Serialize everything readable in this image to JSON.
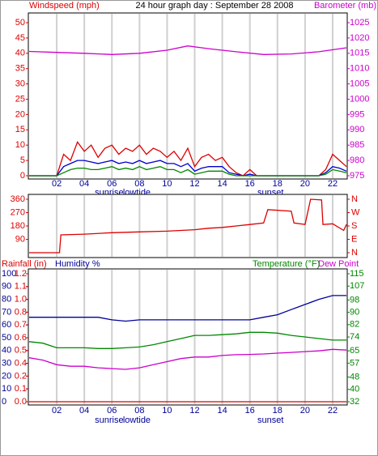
{
  "chart_data": [
    {
      "type": "line",
      "title": "24 hour graph day : September 28 2008",
      "axis_titles": [
        {
          "text": "Windspeed (mph)",
          "color": "#dd0000"
        },
        {
          "text": "Barometer (mb)",
          "color": "#cc00cc"
        }
      ],
      "xlim": [
        0,
        23
      ],
      "xticks": [
        {
          "value": 2,
          "label": "02"
        },
        {
          "value": 4,
          "label": "04"
        },
        {
          "value": 6,
          "label": "06"
        },
        {
          "value": 8,
          "label": "08"
        },
        {
          "value": 10,
          "label": "10"
        },
        {
          "value": 12,
          "label": "12"
        },
        {
          "value": 14,
          "label": "14"
        },
        {
          "value": 16,
          "label": "16"
        },
        {
          "value": 18,
          "label": "18"
        },
        {
          "value": 20,
          "label": "20"
        },
        {
          "value": 22,
          "label": "22"
        }
      ],
      "ylim": [
        0,
        50
      ],
      "yticks": [
        0,
        5,
        10,
        15,
        20,
        25,
        30,
        35,
        40,
        45,
        50
      ],
      "ycolor": "#dd0000",
      "y2lim": [
        975,
        1025
      ],
      "y2ticks": [
        975,
        980,
        985,
        990,
        995,
        1000,
        1005,
        1010,
        1015,
        1020,
        1025
      ],
      "y2color": "#cc00cc",
      "annotations": [
        {
          "text": "sunrise",
          "x": 5.8
        },
        {
          "text": "lowtide",
          "x": 7.8
        },
        {
          "text": "sunset",
          "x": 17.5
        }
      ],
      "x": [
        0,
        0.5,
        1,
        1.5,
        2,
        2.5,
        3,
        3.5,
        4,
        4.5,
        5,
        5.5,
        6,
        6.5,
        7,
        7.5,
        8,
        8.5,
        9,
        9.5,
        10,
        10.5,
        11,
        11.5,
        12,
        12.5,
        13,
        13.5,
        14,
        14.5,
        15,
        15.5,
        16,
        16.5,
        17,
        17.5,
        18,
        18.5,
        19,
        19.5,
        20,
        20.5,
        21,
        21.5,
        22,
        22.5,
        23
      ],
      "series": [
        {
          "color": "#dd0000",
          "values": [
            0,
            0,
            0,
            0,
            0,
            7,
            5,
            11,
            8,
            10,
            6,
            9,
            10,
            7,
            9,
            8,
            10,
            7,
            9,
            8,
            6,
            8,
            5,
            9,
            3,
            6,
            7,
            5,
            6,
            3,
            1,
            0,
            2,
            0,
            0,
            0,
            0,
            0,
            0,
            0,
            0,
            0,
            0,
            2,
            7,
            5,
            3
          ]
        },
        {
          "color": "#0000cc",
          "values": [
            0,
            0,
            0,
            0,
            0,
            3,
            4,
            5,
            5,
            4.5,
            4,
            4.5,
            5,
            4,
            4.5,
            4,
            5,
            4,
            4.5,
            5,
            4,
            4,
            3,
            4,
            1.5,
            2.5,
            3,
            3,
            3,
            1,
            0.5,
            0,
            0.5,
            0,
            0,
            0,
            0,
            0,
            0,
            0,
            0,
            0,
            0,
            1,
            3,
            2.5,
            1.5
          ]
        },
        {
          "color": "#008800",
          "values": [
            0,
            0,
            0,
            0,
            0,
            1,
            2,
            2.5,
            2.5,
            2,
            2,
            2.5,
            3,
            2,
            2.5,
            2,
            3,
            2,
            2.5,
            3,
            2,
            2,
            1,
            2,
            0.5,
            1,
            1.5,
            1.5,
            1.5,
            0.5,
            0,
            0,
            0,
            0,
            0,
            0,
            0,
            0,
            0,
            0,
            0,
            0,
            0,
            0.5,
            2,
            1.5,
            1
          ]
        },
        {
          "color": "#cc00cc",
          "axis": "y2",
          "x": [
            0,
            2,
            4,
            6,
            8,
            10,
            11.5,
            13,
            15,
            17,
            19,
            21,
            23
          ],
          "values": [
            1015.6,
            1015.3,
            1015,
            1014.6,
            1015,
            1016,
            1017.4,
            1016.5,
            1015.5,
            1014.6,
            1014.8,
            1015.5,
            1016.8
          ]
        }
      ]
    },
    {
      "type": "line",
      "xlim": [
        0,
        23
      ],
      "xticks": [
        2,
        4,
        6,
        8,
        10,
        12,
        14,
        16,
        18,
        20,
        22
      ],
      "ylim": [
        0,
        360
      ],
      "yticks": [
        90,
        180,
        270,
        360
      ],
      "ycolor": "#dd0000",
      "y2lim": [
        0,
        360
      ],
      "y2ticks": [
        {
          "value": 0,
          "label": "N"
        },
        {
          "value": 90,
          "label": "E"
        },
        {
          "value": 180,
          "label": "S"
        },
        {
          "value": 270,
          "label": "W"
        },
        {
          "value": 360,
          "label": "N"
        }
      ],
      "y2color": "#dd0000",
      "series": [
        {
          "color": "#dd0000",
          "x": [
            0,
            2.2,
            2.3,
            4,
            6,
            8,
            10,
            12,
            13,
            14,
            15,
            16,
            17,
            17.3,
            19,
            19.2,
            20,
            20.4,
            21.2,
            21.3,
            22,
            22.8,
            23
          ],
          "values": [
            0,
            0,
            120,
            125,
            135,
            140,
            145,
            155,
            165,
            170,
            180,
            190,
            200,
            290,
            280,
            200,
            190,
            360,
            355,
            190,
            195,
            150,
            190
          ]
        }
      ]
    },
    {
      "type": "line",
      "axis_titles": [
        {
          "text": "Rainfall (in)",
          "color": "#dd0000"
        },
        {
          "text": "Humidity %",
          "color": "#000099"
        },
        {
          "text": "Temperature (°F)",
          "color": "#008800"
        },
        {
          "text": "Dew Point",
          "color": "#cc00cc"
        }
      ],
      "xlim": [
        0,
        23
      ],
      "xticks": [
        {
          "value": 2,
          "label": "02"
        },
        {
          "value": 4,
          "label": "04"
        },
        {
          "value": 6,
          "label": "06"
        },
        {
          "value": 8,
          "label": "08"
        },
        {
          "value": 10,
          "label": "10"
        },
        {
          "value": 12,
          "label": "12"
        },
        {
          "value": 14,
          "label": "14"
        },
        {
          "value": 16,
          "label": "16"
        },
        {
          "value": 18,
          "label": "18"
        },
        {
          "value": 20,
          "label": "20"
        },
        {
          "value": 22,
          "label": "22"
        }
      ],
      "ylim": [
        0,
        100
      ],
      "yticks": [
        0,
        10,
        20,
        30,
        40,
        50,
        60,
        70,
        80,
        90,
        100
      ],
      "ycolor": "#000099",
      "y3lim": [
        0,
        1.2
      ],
      "y3ticks": [
        {
          "value": 0,
          "label": "0.0"
        },
        {
          "value": 0.12,
          "label": "0.1"
        },
        {
          "value": 0.24,
          "label": "0.2"
        },
        {
          "value": 0.36,
          "label": "0.4"
        },
        {
          "value": 0.48,
          "label": "0.5"
        },
        {
          "value": 0.6,
          "label": "0.6"
        },
        {
          "value": 0.72,
          "label": "0.7"
        },
        {
          "value": 0.84,
          "label": "0.8"
        },
        {
          "value": 0.96,
          "label": "1.0"
        },
        {
          "value": 1.08,
          "label": "1.1"
        },
        {
          "value": 1.2,
          "label": "1.2"
        }
      ],
      "y3color": "#dd0000",
      "y2lim": [
        32,
        115
      ],
      "y2ticks": [
        32,
        40,
        48,
        57,
        65,
        74,
        82,
        90,
        98,
        107,
        115
      ],
      "y2color": "#008800",
      "annotations": [
        {
          "text": "sunrise",
          "x": 5.8
        },
        {
          "text": "lowtide",
          "x": 7.8
        },
        {
          "text": "sunset",
          "x": 17.5
        }
      ],
      "x": [
        0,
        1,
        2,
        3,
        4,
        5,
        6,
        7,
        8,
        9,
        10,
        11,
        12,
        13,
        14,
        15,
        16,
        17,
        18,
        19,
        20,
        21,
        22,
        23
      ],
      "series": [
        {
          "color": "#dd0000",
          "axis": "y3",
          "values": [
            0,
            0,
            0,
            0,
            0,
            0,
            0,
            0,
            0,
            0,
            0,
            0,
            0,
            0,
            0,
            0,
            0,
            0,
            0,
            0,
            0,
            0,
            0,
            0
          ]
        },
        {
          "color": "#000099",
          "values": [
            66,
            66,
            66,
            66,
            66,
            66,
            64,
            63,
            64,
            64,
            64,
            64,
            64,
            64,
            64,
            64,
            64,
            66,
            68,
            72,
            76,
            80,
            83,
            83
          ]
        },
        {
          "color": "#008800",
          "axis": "y2",
          "values": [
            71,
            70,
            67,
            67,
            67,
            66.5,
            66.5,
            67,
            67.5,
            69,
            71,
            73,
            75,
            75,
            75.5,
            76,
            77,
            77,
            76.5,
            75,
            74,
            73,
            72,
            72
          ]
        },
        {
          "color": "#cc00cc",
          "axis": "y2",
          "values": [
            60.5,
            59,
            56,
            55,
            55,
            54,
            53.5,
            53,
            54,
            56,
            58,
            60,
            61,
            61,
            62,
            62.5,
            62.7,
            63,
            63.5,
            64,
            64.5,
            65,
            66,
            65.5
          ]
        }
      ]
    }
  ]
}
